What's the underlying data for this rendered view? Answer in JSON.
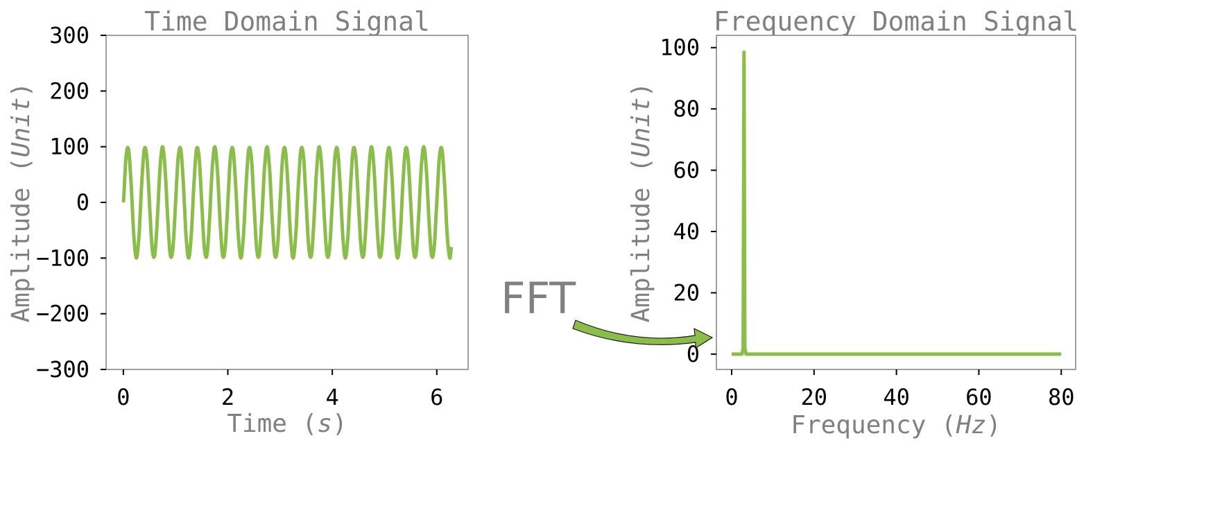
{
  "chart_data": [
    {
      "type": "line",
      "title": "Time Domain Signal",
      "xlabel": {
        "prefix": "Time (",
        "unit": "s",
        "suffix": ")"
      },
      "ylabel": {
        "prefix": "Amplitude (",
        "unit": "Unit",
        "suffix": ")"
      },
      "xlim": [
        -0.33,
        6.6
      ],
      "ylim": [
        -300,
        300
      ],
      "xticks": [
        0,
        2,
        4,
        6
      ],
      "xtick_labels": [
        "0",
        "2",
        "4",
        "6"
      ],
      "yticks": [
        -300,
        -200,
        -100,
        0,
        100,
        200,
        300
      ],
      "ytick_labels": [
        "−300",
        "−200",
        "−100",
        "0",
        "100",
        "200",
        "300"
      ],
      "grid": false,
      "series": [
        {
          "color": "#8bbd4a",
          "x": [
            0,
            0.05,
            0.1,
            0.15,
            0.2,
            0.25,
            0.3,
            0.35,
            0.4,
            0.45,
            0.5,
            0.55,
            0.6,
            0.65,
            0.7,
            0.75,
            0.8,
            0.85,
            0.9,
            0.95,
            1,
            1.05,
            1.1,
            1.15,
            1.2,
            1.25,
            1.3,
            1.35,
            1.4,
            1.45,
            1.5,
            1.55,
            1.6,
            1.65,
            1.7,
            1.75,
            1.8,
            1.85,
            1.9,
            1.95,
            2,
            2.05,
            2.1,
            2.15,
            2.2,
            2.25,
            2.3,
            2.35,
            2.4,
            2.45,
            2.5,
            2.55,
            2.6,
            2.65,
            2.7,
            2.75,
            2.8,
            2.85,
            2.9,
            2.95,
            3,
            3.05,
            3.1,
            3.15,
            3.2,
            3.25,
            3.3,
            3.35,
            3.4,
            3.45,
            3.5,
            3.55,
            3.6,
            3.65,
            3.7,
            3.75,
            3.8,
            3.85,
            3.9,
            3.95,
            4,
            4.05,
            4.1,
            4.15,
            4.2,
            4.25,
            4.3,
            4.35,
            4.4,
            4.45,
            4.5,
            4.55,
            4.6,
            4.65,
            4.7,
            4.75,
            4.8,
            4.85,
            4.9,
            4.95,
            5,
            5.05,
            5.1,
            5.15,
            5.2,
            5.25,
            5.3,
            5.35,
            5.4,
            5.45,
            5.5,
            5.55,
            5.6,
            5.65,
            5.7,
            5.75,
            5.8,
            5.85,
            5.9,
            5.95,
            6,
            6.05,
            6.1,
            6.15,
            6.2,
            6.25,
            6.28
          ],
          "y": [
            0,
            81,
            95,
            31,
            -59,
            -100,
            -59,
            31,
            95,
            81,
            0,
            -81,
            -95,
            -31,
            59,
            100,
            59,
            -31,
            -95,
            -81,
            0,
            81,
            95,
            31,
            -59,
            -100,
            -59,
            31,
            95,
            81,
            0,
            -81,
            -95,
            -31,
            59,
            100,
            59,
            -31,
            -95,
            -81,
            0,
            81,
            95,
            31,
            -59,
            -100,
            -59,
            31,
            95,
            81,
            0,
            -81,
            -95,
            -31,
            59,
            100,
            59,
            -31,
            -95,
            -81,
            0,
            81,
            95,
            31,
            -59,
            -100,
            -59,
            31,
            95,
            81,
            0,
            -81,
            -95,
            -31,
            59,
            100,
            59,
            -31,
            -95,
            -81,
            0,
            81,
            95,
            31,
            -59,
            -100,
            -59,
            31,
            95,
            81,
            0,
            -81,
            -95,
            -31,
            59,
            100,
            59,
            -31,
            -95,
            -81,
            0,
            81,
            95,
            31,
            -59,
            -100,
            -59,
            31,
            95,
            81,
            0,
            -81,
            -95,
            -31,
            59,
            100,
            59,
            -31,
            -95,
            -81,
            0,
            81,
            95,
            31,
            -59,
            -100,
            -80
          ]
        }
      ]
    },
    {
      "type": "line",
      "title": "Frequency Domain Signal",
      "xlabel": {
        "prefix": "Frequency (",
        "unit": "Hz",
        "suffix": ")"
      },
      "ylabel": {
        "prefix": "Amplitude (",
        "unit": "Unit",
        "suffix": ")"
      },
      "xlim": [
        -3.7,
        83.5
      ],
      "ylim": [
        -5,
        104
      ],
      "xticks": [
        0,
        20,
        40,
        60,
        80
      ],
      "xtick_labels": [
        "0",
        "20",
        "40",
        "60",
        "80"
      ],
      "yticks": [
        0,
        20,
        40,
        60,
        80,
        100
      ],
      "ytick_labels": [
        "0",
        "20",
        "40",
        "60",
        "80",
        "100"
      ],
      "grid": false,
      "series": [
        {
          "color": "#8bbd4a",
          "x": [
            0,
            2.5,
            2.8,
            3.0,
            3.2,
            3.5,
            80
          ],
          "y": [
            0,
            0,
            2,
            98.5,
            2,
            0,
            0
          ]
        }
      ]
    }
  ],
  "annotation": {
    "text": "FFT",
    "arrow_color": "#8bbd4a"
  }
}
